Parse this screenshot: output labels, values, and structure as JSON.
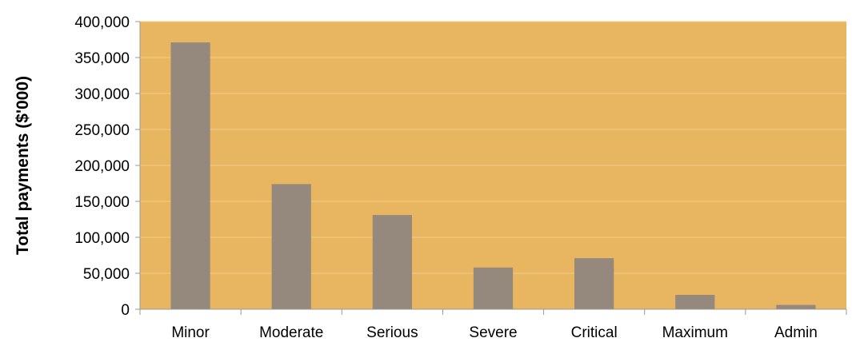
{
  "chart_data": {
    "type": "bar",
    "title": "",
    "xlabel": "",
    "ylabel": "Total payments ($'000)",
    "categories": [
      "Minor",
      "Moderate",
      "Serious",
      "Severe",
      "Critical",
      "Maximum",
      "Admin"
    ],
    "values": [
      371000,
      174000,
      131000,
      58000,
      71000,
      20000,
      6000
    ],
    "ylim": [
      0,
      400000
    ],
    "yticks": [
      0,
      50000,
      100000,
      150000,
      200000,
      250000,
      300000,
      350000,
      400000
    ],
    "ytick_labels": [
      "0",
      "50,000",
      "100,000",
      "150,000",
      "200,000",
      "250,000",
      "300,000",
      "350,000",
      "400,000"
    ],
    "grid": true,
    "legend": "none",
    "colors": {
      "plot_background": "#E8B560",
      "bar": "#95887C",
      "gridline": "#F0CC8A",
      "axis": "#999999"
    }
  }
}
